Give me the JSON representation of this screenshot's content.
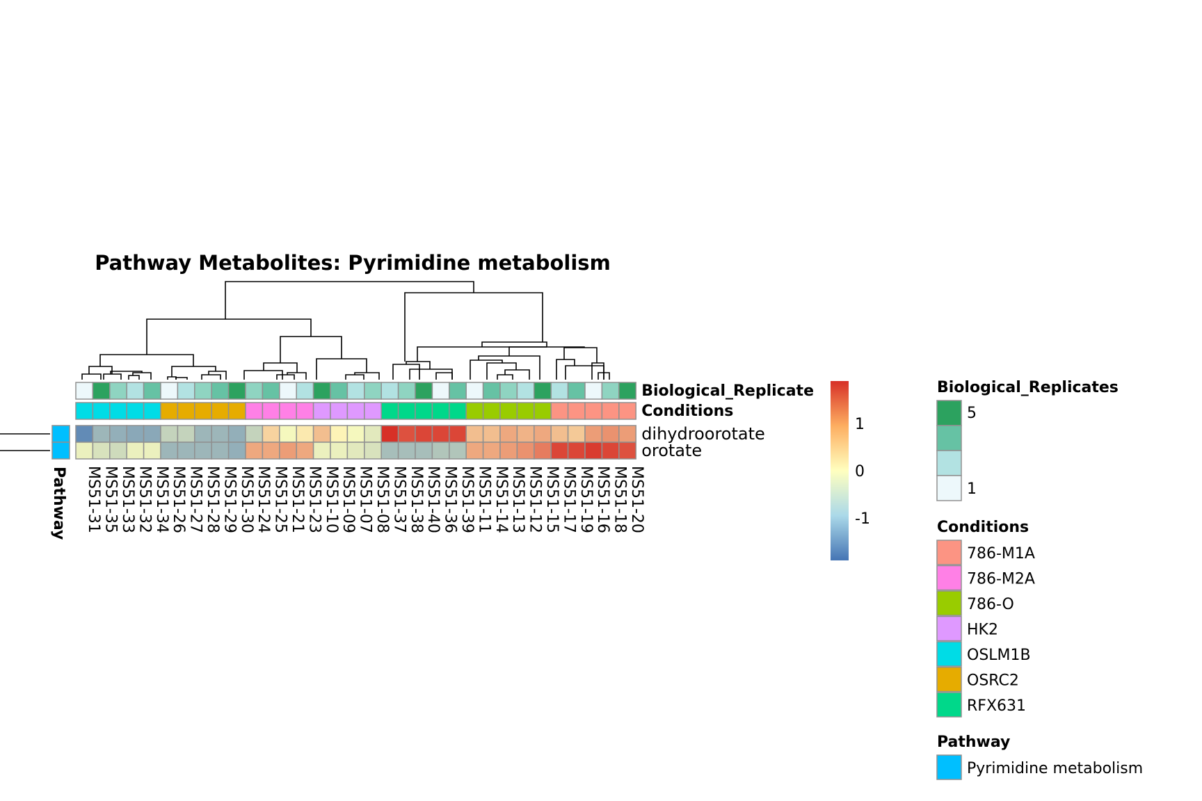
{
  "chart_data": {
    "type": "heatmap",
    "title": "Pathway  Metabolites:  Pyrimidine metabolism",
    "samples": [
      "MS51-31",
      "MS51-35",
      "MS51-33",
      "MS51-32",
      "MS51-34",
      "MS51-26",
      "MS51-27",
      "MS51-28",
      "MS51-29",
      "MS51-30",
      "MS51-24",
      "MS51-25",
      "MS51-21",
      "MS51-23",
      "MS51-10",
      "MS51-09",
      "MS51-07",
      "MS51-08",
      "MS51-37",
      "MS51-38",
      "MS51-40",
      "MS51-36",
      "MS51-39",
      "MS51-11",
      "MS51-14",
      "MS51-13",
      "MS51-12",
      "MS51-15",
      "MS51-17",
      "MS51-19",
      "MS51-16",
      "MS51-18",
      "MS51-20"
    ],
    "rows": [
      "dihydroorotate",
      "orotate"
    ],
    "row_label_annotations": {
      "Biological_Replicates": "Biological_Replicate",
      "Conditions": "Conditions"
    },
    "values": [
      [
        -1.6,
        -1.0,
        -1.1,
        -1.2,
        -1.2,
        -0.6,
        -0.6,
        -1.0,
        -1.0,
        -1.1,
        -0.6,
        0.4,
        -0.1,
        0.2,
        0.6,
        0.1,
        -0.1,
        -0.3,
        1.9,
        1.6,
        1.7,
        1.7,
        1.7,
        0.6,
        0.6,
        0.8,
        0.7,
        0.8,
        0.6,
        0.5,
        0.9,
        1.0,
        0.9
      ],
      [
        -0.2,
        -0.4,
        -0.5,
        -0.2,
        -0.2,
        -1.0,
        -1.0,
        -1.0,
        -1.0,
        -1.1,
        0.8,
        0.8,
        0.9,
        0.8,
        -0.2,
        -0.2,
        -0.3,
        -0.4,
        -0.9,
        -0.9,
        -0.9,
        -0.8,
        -0.8,
        0.8,
        0.8,
        0.9,
        1.0,
        1.2,
        1.7,
        1.7,
        1.8,
        1.7,
        1.6
      ]
    ],
    "biological_replicates": [
      1,
      5,
      3,
      2,
      4,
      1,
      2,
      3,
      4,
      5,
      3,
      4,
      1,
      2,
      5,
      4,
      2,
      3,
      2,
      3,
      5,
      1,
      4,
      1,
      4,
      3,
      2,
      5,
      2,
      4,
      1,
      3,
      5
    ],
    "conditions": [
      "OSLM1B",
      "OSLM1B",
      "OSLM1B",
      "OSLM1B",
      "OSLM1B",
      "OSRC2",
      "OSRC2",
      "OSRC2",
      "OSRC2",
      "OSRC2",
      "786-M2A",
      "786-M2A",
      "786-M2A",
      "786-M2A",
      "HK2",
      "HK2",
      "HK2",
      "HK2",
      "RFX631",
      "RFX631",
      "RFX631",
      "RFX631",
      "RFX631",
      "786-O",
      "786-O",
      "786-O",
      "786-O",
      "786-O",
      "786-M1A",
      "786-M1A",
      "786-M1A",
      "786-M1A",
      "786-M1A"
    ],
    "pathway": {
      "label": "Pathway",
      "value": "Pyrimidine metabolism"
    },
    "color_scale": {
      "range": [
        -1.9,
        1.9
      ],
      "ticks": [
        "1",
        "0",
        "-1"
      ],
      "low": "#4575b4",
      "mid": "#ffffbf",
      "high": "#d73027"
    },
    "legends": {
      "biological_replicates": {
        "title": "Biological_Replicates",
        "max_label": "5",
        "min_label": "1",
        "colors": [
          "#2ca25f",
          "#66c2a4",
          "#b2e2e2",
          "#edf8fb"
        ]
      },
      "conditions": {
        "title": "Conditions",
        "items": [
          {
            "label": "786-M1A",
            "color": "#fc9483"
          },
          {
            "label": "786-M2A",
            "color": "#ff80e6"
          },
          {
            "label": "786-O",
            "color": "#99cc00"
          },
          {
            "label": "HK2",
            "color": "#df99ff"
          },
          {
            "label": "OSLM1B",
            "color": "#00dce6"
          },
          {
            "label": "OSRC2",
            "color": "#e6ac00"
          },
          {
            "label": "RFX631",
            "color": "#00d88a"
          }
        ]
      },
      "pathway": {
        "title": "Pathway",
        "items": [
          {
            "label": "Pyrimidine metabolism",
            "color": "#00bfff"
          }
        ]
      }
    }
  }
}
